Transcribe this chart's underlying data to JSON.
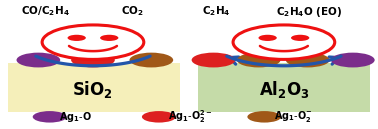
{
  "sio2_color": "#F5EFBA",
  "al2o3_color": "#C5DBA8",
  "smiley_outline_color": "#EE1111",
  "smiley_face_color": "#FFFFFF",
  "arrow_color": "#2255AA",
  "purple_color": "#7B2D8B",
  "red_color": "#DD2020",
  "brown_color": "#A05818",
  "text_color": "#000000",
  "figw": 3.78,
  "figh": 1.29,
  "dpi": 100
}
